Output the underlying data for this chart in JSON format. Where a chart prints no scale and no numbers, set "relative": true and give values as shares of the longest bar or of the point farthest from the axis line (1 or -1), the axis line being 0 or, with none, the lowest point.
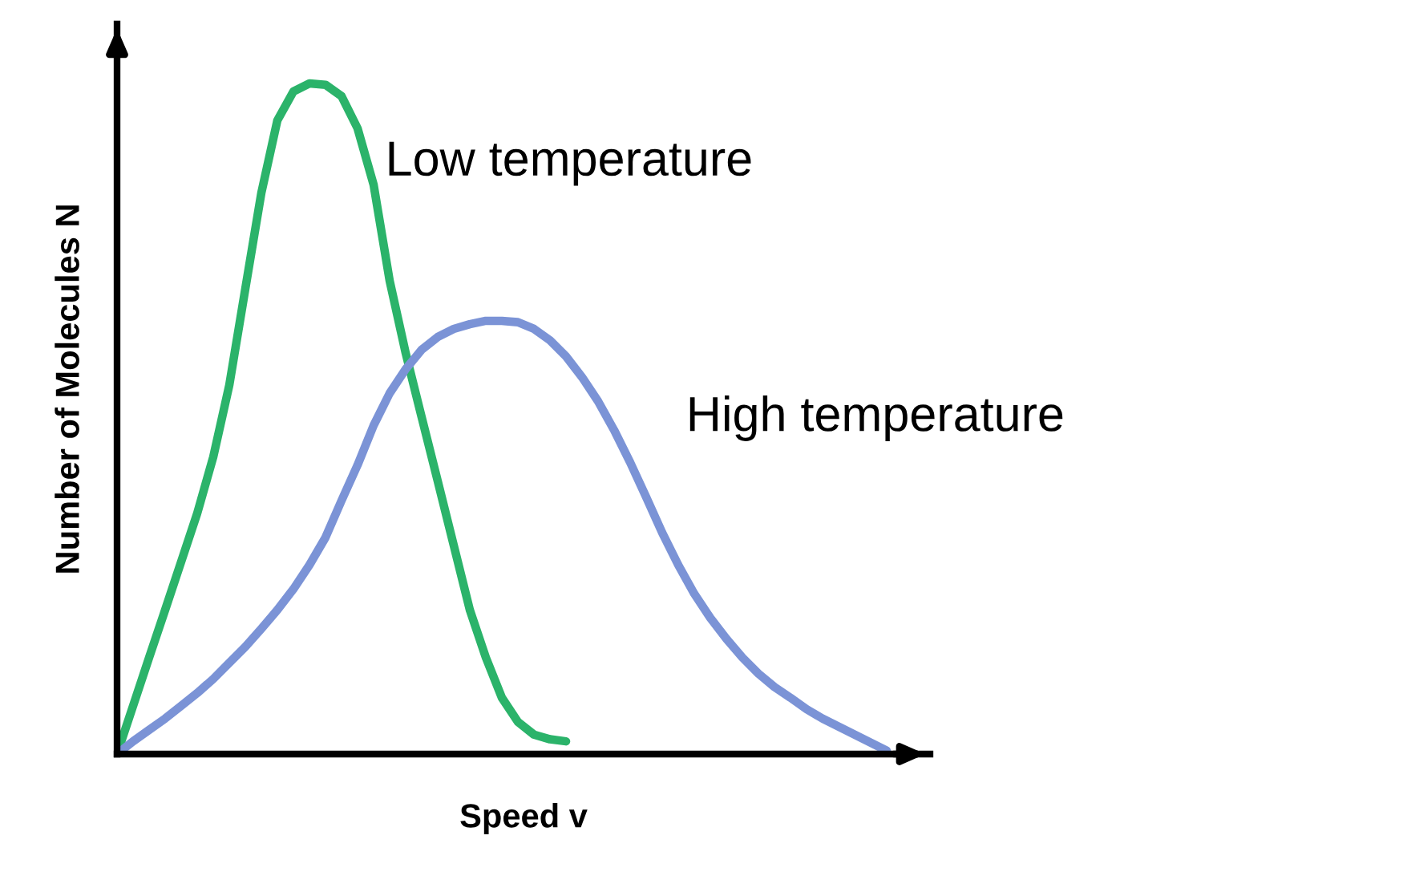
{
  "chart_data": {
    "type": "line",
    "relative": true,
    "xlabel": "Speed v",
    "ylabel": "Number of Molecules N",
    "legend": false,
    "marker": "none",
    "line_style": "solid",
    "categories": [
      null,
      null,
      null,
      null,
      null,
      null,
      null,
      null,
      null,
      null,
      null,
      null,
      null,
      null,
      null,
      null,
      null,
      null,
      null,
      null,
      null,
      null,
      null,
      null,
      null,
      null,
      null,
      null,
      null,
      null,
      null,
      null,
      null,
      null,
      null,
      null,
      null,
      null,
      null,
      null,
      null,
      null,
      null,
      null,
      null,
      null,
      null,
      null,
      null
    ],
    "series": [
      {
        "name": "Low temperature",
        "color": "#2bb36a",
        "values": [
          0,
          0.072,
          0.144,
          0.215,
          0.287,
          0.359,
          0.443,
          0.55,
          0.694,
          0.837,
          0.945,
          0.988,
          1,
          0.998,
          0.981,
          0.933,
          0.849,
          0.706,
          0.598,
          0.502,
          0.407,
          0.311,
          0.215,
          0.144,
          0.084,
          0.048,
          0.029,
          0.022,
          0.019,
          null,
          null,
          null,
          null,
          null,
          null,
          null,
          null,
          null,
          null,
          null,
          null,
          null,
          null,
          null,
          null,
          null,
          null,
          null,
          null
        ]
      },
      {
        "name": "High temperature",
        "color": "#7b93d6",
        "values": [
          0,
          0.019,
          0.036,
          0.053,
          0.072,
          0.091,
          0.112,
          0.136,
          0.16,
          0.187,
          0.215,
          0.246,
          0.282,
          0.323,
          0.378,
          0.431,
          0.49,
          0.538,
          0.574,
          0.603,
          0.622,
          0.634,
          0.641,
          0.646,
          0.646,
          0.644,
          0.634,
          0.617,
          0.593,
          0.562,
          0.526,
          0.483,
          0.435,
          0.383,
          0.33,
          0.282,
          0.239,
          0.203,
          0.172,
          0.144,
          0.12,
          0.1,
          0.084,
          0.067,
          0.053,
          0.041,
          0.029,
          0.017,
          0.005
        ]
      }
    ]
  }
}
